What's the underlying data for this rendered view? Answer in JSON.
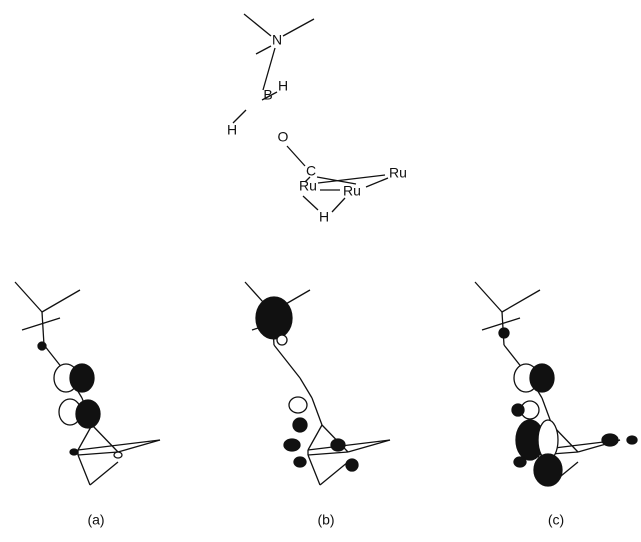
{
  "molecule": {
    "atoms": [
      "N",
      "B",
      "H",
      "H",
      "O",
      "C",
      "Ru",
      "Ru",
      "Ru",
      "H"
    ]
  },
  "panels": [
    "(a)",
    "(b)",
    "(c)"
  ]
}
